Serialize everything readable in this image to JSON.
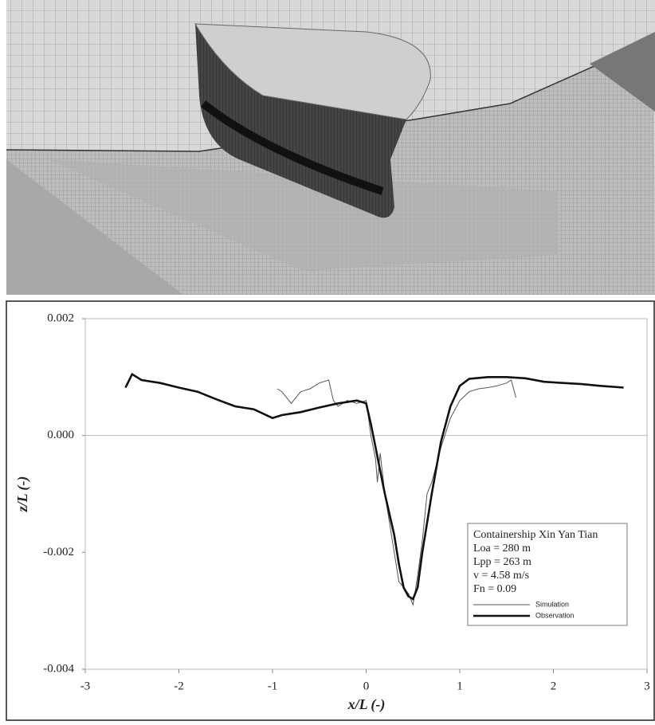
{
  "chart_data": {
    "type": "line",
    "xlabel": "x/L (-)",
    "ylabel": "z/L (-)",
    "xlim": [
      -3,
      3
    ],
    "xticks": [
      -3,
      -2,
      -1,
      0,
      1,
      2,
      3
    ],
    "ylim": [
      -0.004,
      0.002
    ],
    "yticks": [
      -0.004,
      -0.002,
      {
        "value": 0,
        "label": "0.000"
      },
      0.002
    ],
    "annotations": [
      "Containership Xin Yan Tian",
      "Loa = 280 m",
      "Lpp = 263 m",
      "v = 4.58 m/s",
      "Fn = 0.09"
    ],
    "series": [
      {
        "name": "Simulation",
        "color": "#555555",
        "x": [
          -0.95,
          -0.9,
          -0.8,
          -0.7,
          -0.6,
          -0.5,
          -0.4,
          -0.35,
          -0.3,
          -0.2,
          -0.1,
          0.0,
          0.05,
          0.1,
          0.12,
          0.15,
          0.2,
          0.25,
          0.3,
          0.35,
          0.4,
          0.45,
          0.5,
          0.55,
          0.6,
          0.65,
          0.7,
          0.8,
          0.9,
          1.0,
          1.1,
          1.2,
          1.3,
          1.4,
          1.5,
          1.55,
          1.6
        ],
        "values": [
          0.0008,
          0.00075,
          0.00055,
          0.00075,
          0.0008,
          0.0009,
          0.00095,
          0.0006,
          0.0005,
          0.0006,
          0.00055,
          0.0006,
          0.0,
          -0.0004,
          -0.0008,
          -0.0003,
          -0.001,
          -0.0015,
          -0.002,
          -0.0025,
          -0.0026,
          -0.0027,
          -0.0029,
          -0.0024,
          -0.0018,
          -0.001,
          -0.0008,
          -0.0002,
          0.0003,
          0.0006,
          0.00075,
          0.0008,
          0.00082,
          0.00085,
          0.0009,
          0.00095,
          0.00065
        ]
      },
      {
        "name": "Observation",
        "color": "#111111",
        "x": [
          -2.57,
          -2.5,
          -2.4,
          -2.2,
          -2.0,
          -1.8,
          -1.6,
          -1.4,
          -1.2,
          -1.0,
          -0.9,
          -0.7,
          -0.5,
          -0.3,
          -0.1,
          0.0,
          0.05,
          0.1,
          0.15,
          0.2,
          0.3,
          0.35,
          0.4,
          0.45,
          0.5,
          0.55,
          0.6,
          0.7,
          0.8,
          0.9,
          1.0,
          1.1,
          1.3,
          1.5,
          1.7,
          1.9,
          2.1,
          2.3,
          2.5,
          2.75
        ],
        "values": [
          0.00082,
          0.00105,
          0.00095,
          0.0009,
          0.00082,
          0.00075,
          0.00062,
          0.0005,
          0.00045,
          0.0003,
          0.00035,
          0.0004,
          0.00048,
          0.00055,
          0.0006,
          0.00055,
          0.0002,
          -0.0002,
          -0.0006,
          -0.001,
          -0.0017,
          -0.0022,
          -0.0026,
          -0.00275,
          -0.0028,
          -0.0026,
          -0.002,
          -0.001,
          -0.0001,
          0.0005,
          0.00085,
          0.00097,
          0.001,
          0.001,
          0.00098,
          0.00092,
          0.0009,
          0.00088,
          0.00085,
          0.00082
        ]
      }
    ]
  }
}
